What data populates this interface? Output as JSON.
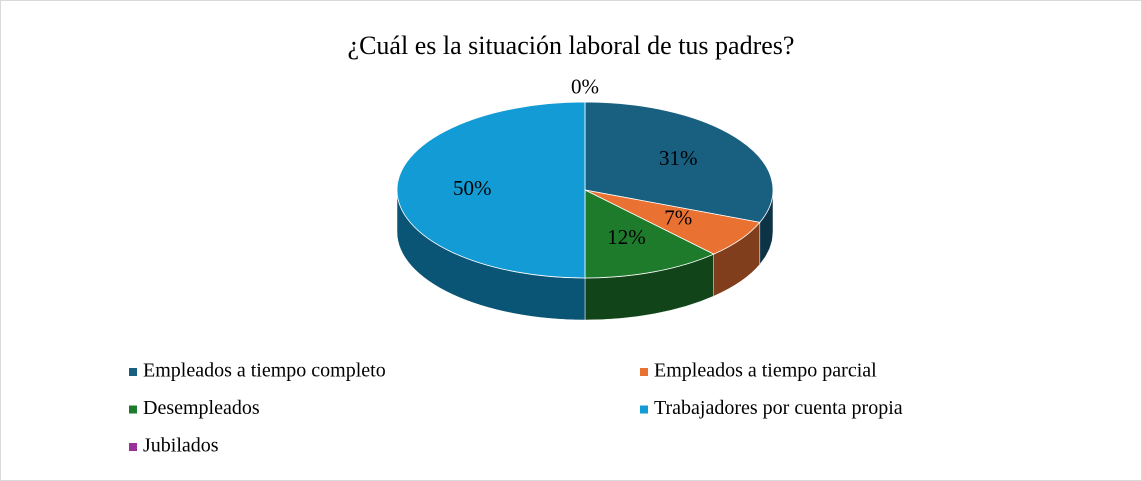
{
  "chart_data": {
    "type": "pie",
    "title": "¿Cuál es la situación laboral de tus padres?",
    "categories": [
      "Empleados a tiempo completo",
      "Empleados a tiempo parcial",
      "Desempleados",
      "Trabajadores por cuenta propia",
      "Jubilados"
    ],
    "values": [
      31,
      7,
      12,
      50,
      0
    ],
    "value_labels": [
      "31%",
      "7%",
      "12%",
      "50%",
      "0%"
    ],
    "colors": [
      "#185f80",
      "#e97132",
      "#1e7b2c",
      "#139bd5",
      "#9b2f99"
    ],
    "legend": "bottom"
  }
}
